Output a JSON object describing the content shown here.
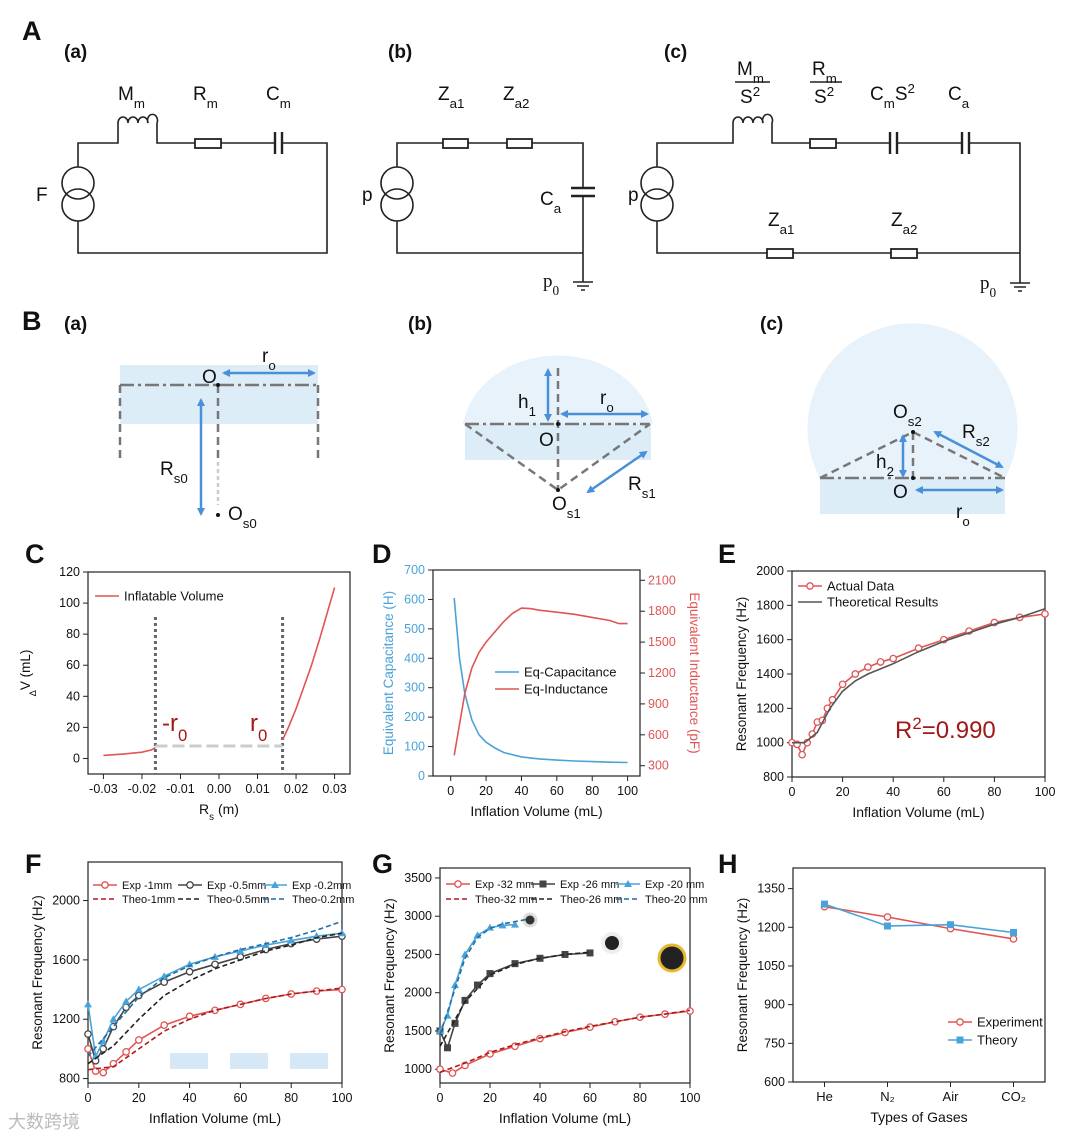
{
  "section_labels": [
    "A",
    "B"
  ],
  "circuits": [
    {
      "tag": "(a)",
      "labels": [
        [
          {
            "text": "M"
          },
          {
            "text": "m",
            "pos": "sub"
          }
        ],
        [
          {
            "text": "R"
          },
          {
            "text": "m",
            "pos": "sub"
          }
        ],
        [
          {
            "text": "C"
          },
          {
            "text": "m",
            "pos": "sub"
          }
        ],
        "F"
      ]
    },
    {
      "tag": "(b)",
      "labels": [
        [
          {
            "text": "Z"
          },
          {
            "text": "a1",
            "pos": "sub"
          }
        ],
        [
          {
            "text": "Z"
          },
          {
            "text": "a2",
            "pos": "sub"
          }
        ],
        [
          {
            "text": "C"
          },
          {
            "text": "a",
            "pos": "sub"
          }
        ],
        "p",
        [
          {
            "text": "p"
          },
          {
            "text": "0",
            "pos": "sub"
          }
        ]
      ]
    },
    {
      "tag": "(c)",
      "labels": [
        [
          {
            "text": "M"
          },
          {
            "text": "m",
            "pos": "sub"
          }
        ],
        [
          {
            "text": "S"
          },
          {
            "text": "2",
            "pos": "super"
          }
        ],
        [
          {
            "text": "R"
          },
          {
            "text": "m",
            "pos": "sub"
          }
        ],
        [
          {
            "text": "S"
          },
          {
            "text": "2",
            "pos": "super"
          }
        ],
        [
          {
            "text": "C"
          },
          {
            "text": "m",
            "pos": "sub"
          },
          {
            "text": "S"
          },
          {
            "text": "2",
            "pos": "super"
          }
        ],
        [
          {
            "text": "C"
          },
          {
            "text": "a",
            "pos": "sub"
          }
        ],
        [
          {
            "text": "Z"
          },
          {
            "text": "a1",
            "pos": "sub"
          }
        ],
        [
          {
            "text": "Z"
          },
          {
            "text": "a2",
            "pos": "sub"
          }
        ],
        "p",
        [
          {
            "text": "p"
          },
          {
            "text": "0",
            "pos": "sub"
          }
        ]
      ]
    }
  ],
  "geometry": [
    {
      "tag": "(a)",
      "labels": [
        "O",
        [
          {
            "text": "r"
          },
          {
            "text": "o",
            "pos": "sub"
          }
        ],
        [
          {
            "text": "R"
          },
          {
            "text": "s0",
            "pos": "sub"
          }
        ],
        [
          {
            "text": "O"
          },
          {
            "text": "s0",
            "pos": "sub"
          }
        ]
      ]
    },
    {
      "tag": "(b)",
      "labels": [
        [
          {
            "text": "h"
          },
          {
            "text": "1",
            "pos": "sub"
          }
        ],
        [
          {
            "text": "r"
          },
          {
            "text": "o",
            "pos": "sub"
          }
        ],
        "O",
        [
          {
            "text": "O"
          },
          {
            "text": "s1",
            "pos": "sub"
          }
        ],
        [
          {
            "text": "R"
          },
          {
            "text": "s1",
            "pos": "sub"
          }
        ]
      ]
    },
    {
      "tag": "(c)",
      "labels": [
        [
          {
            "text": "O"
          },
          {
            "text": "s2",
            "pos": "sub"
          }
        ],
        [
          {
            "text": "R"
          },
          {
            "text": "s2",
            "pos": "sub"
          }
        ],
        [
          {
            "text": "h"
          },
          {
            "text": "2",
            "pos": "sub"
          }
        ],
        "O",
        [
          {
            "text": "r"
          },
          {
            "text": "o",
            "pos": "sub"
          }
        ]
      ]
    }
  ],
  "watermark": "大数跨境",
  "chart_data": [
    {
      "label": "C",
      "type": "line",
      "xlabel": [
        {
          "text": "R"
        },
        {
          "text": "s",
          "pos": "sub"
        },
        {
          "text": " (m)"
        }
      ],
      "ylabel": [
        {
          "text": "Δ",
          "pos": "sub"
        },
        {
          "text": "V (mL)"
        }
      ],
      "xlim": [
        -0.034,
        0.034
      ],
      "xticks": [
        -0.03,
        -0.02,
        -0.01,
        {
          "value": 0,
          "label": "0.00"
        },
        0.01,
        0.02,
        0.03
      ],
      "ylim": [
        -10,
        120
      ],
      "yticks": [
        0,
        20,
        40,
        60,
        80,
        100,
        120
      ],
      "vlines": [
        -0.0165,
        0.0165
      ],
      "hline": 8,
      "annotations": [
        [
          {
            "text": "-r"
          },
          {
            "text": "0",
            "pos": "sub"
          }
        ],
        [
          {
            "text": "r"
          },
          {
            "text": "0",
            "pos": "sub"
          }
        ]
      ],
      "annotation_color": "#a01818",
      "series": [
        {
          "name": "Inflatable Volume",
          "color": "#e05555",
          "line": "solid",
          "x": [
            -0.03,
            -0.025,
            -0.02,
            -0.0175,
            -0.0165,
            null,
            0.0165,
            0.018,
            0.02,
            0.022,
            0.024,
            0.026,
            0.028,
            0.03
          ],
          "values": [
            2,
            2.8,
            4,
            5.5,
            7,
            null,
            12,
            20,
            32,
            46,
            60,
            76,
            93,
            110
          ]
        }
      ]
    },
    {
      "label": "D",
      "type": "line",
      "xlabel": "Inflation Volume (mL)",
      "ylabel": "Equivalent Capacitance (H)",
      "y2label": "Equivalent Inductance (pF)",
      "ylabel_color": "#4aa3d8",
      "y2label_color": "#e05555",
      "xlim": [
        -10,
        107
      ],
      "xticks": [
        0,
        20,
        40,
        60,
        80,
        100
      ],
      "ylim": [
        0,
        700
      ],
      "yticks": [
        0,
        100,
        200,
        300,
        400,
        500,
        600,
        700
      ],
      "y2lim": [
        200,
        2200
      ],
      "y2ticks": [
        300,
        600,
        900,
        1200,
        1500,
        1800,
        2100
      ],
      "series": [
        {
          "name": "Eq-Capacitance",
          "color": "#4aa3d8",
          "line": "solid",
          "x": [
            2,
            5,
            8,
            12,
            16,
            20,
            25,
            30,
            40,
            50,
            60,
            70,
            80,
            90,
            100
          ],
          "values": [
            605,
            400,
            280,
            190,
            140,
            115,
            95,
            80,
            65,
            58,
            54,
            51,
            49,
            47,
            46
          ]
        },
        {
          "name": "Eq-Inductance",
          "color": "#e05555",
          "line": "solid",
          "axis": "y2",
          "x": [
            2,
            5,
            8,
            12,
            16,
            20,
            25,
            30,
            35,
            40,
            45,
            50,
            60,
            70,
            80,
            90,
            95,
            100
          ],
          "values": [
            400,
            700,
            1000,
            1250,
            1400,
            1500,
            1600,
            1700,
            1780,
            1830,
            1825,
            1810,
            1790,
            1770,
            1740,
            1710,
            1680,
            1680
          ]
        }
      ]
    },
    {
      "label": "E",
      "type": "line",
      "xlabel": "Inflation Volume (mL)",
      "ylabel": "Resonant Frequency (Hz)",
      "xlim": [
        0,
        100
      ],
      "xticks": [
        0,
        20,
        40,
        60,
        80,
        100
      ],
      "ylim": [
        800,
        2000
      ],
      "yticks": [
        800,
        1000,
        1200,
        1400,
        1600,
        1800,
        2000
      ],
      "annotations": [
        [
          {
            "text": "R"
          },
          {
            "text": "2",
            "pos": "super"
          },
          {
            "text": "=0.990"
          }
        ]
      ],
      "annotation_color": "#a01818",
      "series": [
        {
          "name": "Actual Data",
          "color": "#e05555",
          "line": "solid",
          "marker": "circle",
          "x": [
            0,
            2,
            4,
            6,
            8,
            10,
            12,
            14,
            16,
            20,
            25,
            30,
            35,
            40,
            50,
            60,
            70,
            80,
            90,
            100
          ],
          "values": [
            1000,
            990,
            930,
            1000,
            1050,
            1120,
            1130,
            1200,
            1250,
            1340,
            1400,
            1440,
            1470,
            1490,
            1550,
            1600,
            1650,
            1700,
            1730,
            1750
          ]
        },
        {
          "name": "Theoretical Results",
          "color": "#555555",
          "line": "solid",
          "x": [
            0,
            5,
            10,
            15,
            20,
            25,
            30,
            40,
            50,
            60,
            70,
            80,
            90,
            100
          ],
          "values": [
            1000,
            1000,
            1060,
            1200,
            1300,
            1360,
            1400,
            1460,
            1530,
            1590,
            1640,
            1690,
            1730,
            1780
          ]
        }
      ]
    },
    {
      "label": "F",
      "type": "line",
      "xlabel": "Inflation Volume (mL)",
      "ylabel": "Resonant Frequency (Hz)",
      "xlim": [
        0,
        100
      ],
      "xticks": [
        0,
        20,
        40,
        60,
        80,
        100
      ],
      "ylim": [
        770,
        2260
      ],
      "yticks": [
        800,
        1200,
        1600,
        2000
      ],
      "series": [
        {
          "name": "Exp  -1mm",
          "color": "#e05555",
          "line": "solid",
          "marker": "circle",
          "x": [
            0,
            3,
            6,
            10,
            15,
            20,
            30,
            40,
            50,
            60,
            70,
            80,
            90,
            100
          ],
          "values": [
            1000,
            850,
            840,
            900,
            980,
            1060,
            1160,
            1220,
            1260,
            1300,
            1340,
            1370,
            1390,
            1400
          ]
        },
        {
          "name": "Exp  -0.5mm",
          "color": "#444444",
          "line": "solid",
          "marker": "circle",
          "x": [
            0,
            3,
            6,
            10,
            15,
            20,
            30,
            40,
            50,
            60,
            70,
            80,
            90,
            100
          ],
          "values": [
            1100,
            920,
            1000,
            1150,
            1280,
            1360,
            1450,
            1520,
            1570,
            1620,
            1670,
            1710,
            1740,
            1760
          ]
        },
        {
          "name": "Exp  -0.2mm",
          "color": "#4aa3d8",
          "line": "solid",
          "marker": "triangle",
          "x": [
            0,
            3,
            6,
            10,
            15,
            20,
            30,
            40,
            50,
            60,
            70,
            80,
            90,
            100
          ],
          "values": [
            1300,
            950,
            1050,
            1200,
            1320,
            1400,
            1490,
            1570,
            1620,
            1660,
            1700,
            1730,
            1760,
            1780
          ]
        },
        {
          "name": "Theo-1mm",
          "color": "#b01818",
          "line": "dashed",
          "x": [
            0,
            10,
            20,
            30,
            40,
            50,
            60,
            70,
            80,
            90,
            100
          ],
          "values": [
            860,
            880,
            1000,
            1120,
            1200,
            1260,
            1300,
            1340,
            1370,
            1390,
            1410
          ]
        },
        {
          "name": "Theo-0.5mm",
          "color": "#222222",
          "line": "dashed",
          "x": [
            0,
            10,
            20,
            30,
            40,
            50,
            60,
            70,
            80,
            90,
            100
          ],
          "values": [
            900,
            1020,
            1200,
            1360,
            1460,
            1540,
            1600,
            1660,
            1700,
            1750,
            1780
          ]
        },
        {
          "name": "Theo-0.2mm",
          "color": "#1f6fa8",
          "line": "dashed",
          "x": [
            0,
            10,
            20,
            30,
            40,
            50,
            60,
            70,
            80,
            90,
            100
          ],
          "values": [
            950,
            1150,
            1350,
            1480,
            1560,
            1620,
            1670,
            1710,
            1750,
            1800,
            1860
          ]
        }
      ]
    },
    {
      "label": "G",
      "type": "line",
      "xlabel": "Inflation Volume (mL)",
      "ylabel": "Resonant Frequency (Hz)",
      "xlim": [
        0,
        100
      ],
      "xticks": [
        0,
        20,
        40,
        60,
        80,
        100
      ],
      "ylim": [
        820,
        3630
      ],
      "yticks": [
        1000,
        1500,
        2000,
        2500,
        3000,
        3500
      ],
      "series": [
        {
          "name": "Exp  -32 mm",
          "color": "#e05555",
          "line": "solid",
          "marker": "circle",
          "x": [
            0,
            5,
            10,
            20,
            30,
            40,
            50,
            60,
            70,
            80,
            90,
            100
          ],
          "values": [
            1000,
            950,
            1050,
            1200,
            1300,
            1400,
            1480,
            1550,
            1620,
            1680,
            1720,
            1760
          ]
        },
        {
          "name": "Exp  -26 mm",
          "color": "#444444",
          "line": "solid",
          "marker": "square",
          "x": [
            0,
            3,
            6,
            10,
            15,
            20,
            30,
            40,
            50,
            60
          ],
          "values": [
            1500,
            1280,
            1600,
            1900,
            2100,
            2250,
            2380,
            2450,
            2500,
            2520
          ]
        },
        {
          "name": "Exp  -20 mm",
          "color": "#4aa3d8",
          "line": "solid",
          "marker": "triangle",
          "x": [
            0,
            3,
            6,
            10,
            15,
            20,
            25,
            30
          ],
          "values": [
            1500,
            1700,
            2100,
            2500,
            2750,
            2850,
            2880,
            2890
          ]
        },
        {
          "name": "Theo-32 mm",
          "color": "#b01818",
          "line": "dashed",
          "x": [
            0,
            10,
            20,
            30,
            40,
            50,
            60,
            70,
            80,
            90,
            100
          ],
          "values": [
            960,
            1080,
            1220,
            1320,
            1410,
            1490,
            1560,
            1620,
            1680,
            1720,
            1770
          ]
        },
        {
          "name": "Theo-26 mm",
          "color": "#222222",
          "line": "dashed",
          "x": [
            0,
            10,
            20,
            30,
            40,
            50,
            60
          ],
          "values": [
            1300,
            1880,
            2230,
            2370,
            2450,
            2500,
            2530
          ]
        },
        {
          "name": "Theo-20 mm",
          "color": "#1f6fa8",
          "line": "dashed",
          "x": [
            0,
            5,
            10,
            15,
            20,
            25,
            30,
            35
          ],
          "values": [
            1450,
            1950,
            2450,
            2720,
            2840,
            2900,
            2930,
            2960
          ]
        }
      ]
    },
    {
      "label": "H",
      "type": "line",
      "xlabel": "Types of Gases",
      "ylabel": "Resonant Frequency (Hz)",
      "categories": [
        "He",
        "N₂",
        "Air",
        "CO₂"
      ],
      "ylim": [
        600,
        1430
      ],
      "yticks": [
        600,
        750,
        900,
        1050,
        1200,
        1350
      ],
      "series": [
        {
          "name": "Experiment",
          "color": "#e05555",
          "line": "solid",
          "marker": "circle",
          "values": [
            1280,
            1240,
            1195,
            1155
          ]
        },
        {
          "name": "Theory",
          "color": "#4aa3d8",
          "line": "solid",
          "marker": "square",
          "values": [
            1290,
            1205,
            1210,
            1180
          ]
        }
      ]
    }
  ]
}
